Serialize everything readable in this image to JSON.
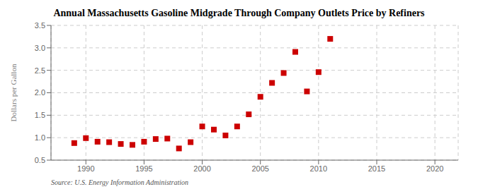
{
  "chart_data": {
    "type": "scatter",
    "title": "Annual Massachusetts Gasoline Midgrade Through Company Outlets Price by Refiners",
    "ylabel": "Dollars per Gallon",
    "annotation": "Source: U.S. Energy Information Administration",
    "x": [
      1989,
      1990,
      1991,
      1992,
      1993,
      1994,
      1995,
      1996,
      1997,
      1998,
      1999,
      2000,
      2001,
      2002,
      2003,
      2004,
      2005,
      2006,
      2007,
      2008,
      2009,
      2010,
      2011
    ],
    "values": [
      0.88,
      0.99,
      0.91,
      0.9,
      0.86,
      0.84,
      0.91,
      0.97,
      0.98,
      0.76,
      0.9,
      1.25,
      1.18,
      1.05,
      1.25,
      1.52,
      1.91,
      2.22,
      2.44,
      2.91,
      2.03,
      2.46,
      3.2
    ],
    "color": "#cc0000",
    "marker": "square",
    "xlim": [
      1987,
      2022
    ],
    "ylim": [
      0.5,
      3.5
    ],
    "xticks": [
      1990,
      1995,
      2000,
      2005,
      2010,
      2015,
      2020
    ],
    "yticks": [
      0.5,
      {
        "value": 1.0,
        "label": "1.0"
      },
      1.5,
      {
        "value": 2.0,
        "label": "2.0"
      },
      2.5,
      {
        "value": 3.0,
        "label": "3.0"
      },
      3.5
    ],
    "grid": true
  }
}
